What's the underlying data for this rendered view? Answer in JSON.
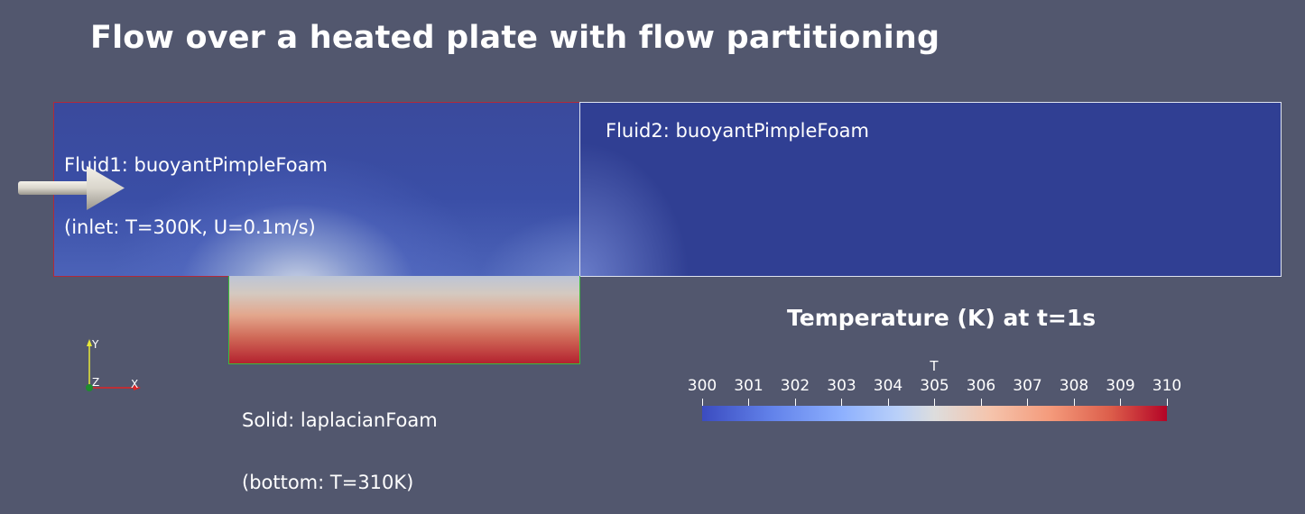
{
  "title": "Flow over a heated plate with flow partitioning",
  "regions": {
    "fluid1": {
      "label_line1": "Fluid1: buoyantPimpleFoam",
      "label_line2": "(inlet: T=300K, U=0.1m/s)",
      "border_color": "#b22a3a"
    },
    "fluid2": {
      "label_line1": "Fluid2: buoyantPimpleFoam",
      "border_color": "#dfe3ef"
    },
    "solid": {
      "label_line1": "Solid: laplacianFoam",
      "label_line2": "(bottom: T=310K)",
      "border_color": "#3bbd3b"
    }
  },
  "axes": {
    "y_label": "Y",
    "z_label": "Z",
    "x_label": "X"
  },
  "legend": {
    "title": "Temperature (K) at t=1s",
    "variable": "T",
    "min": 300,
    "max": 310,
    "ticks": [
      "300",
      "301",
      "302",
      "303",
      "304",
      "305",
      "306",
      "307",
      "308",
      "309",
      "310"
    ],
    "colormap": [
      "#3b4cc0",
      "#dddddd",
      "#b40426"
    ]
  },
  "colors": {
    "background": "#52576e"
  }
}
